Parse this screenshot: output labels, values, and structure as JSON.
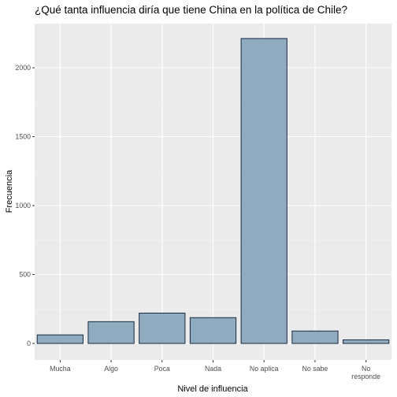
{
  "chart_data": {
    "type": "bar",
    "title": "¿Qué tanta influencia diría que tiene China en la política de Chile?",
    "xlabel": "Nivel de influencia",
    "ylabel": "Frecuencia",
    "categories": [
      [
        "Mucha"
      ],
      [
        "Algo"
      ],
      [
        "Poca"
      ],
      [
        "Nada"
      ],
      [
        "No aplica"
      ],
      [
        "No sabe"
      ],
      [
        "No",
        "responde"
      ]
    ],
    "values": [
      62,
      158,
      220,
      187,
      2212,
      90,
      26
    ],
    "ylim": [
      -120,
      2320
    ],
    "yticks": [
      0,
      500,
      1000,
      1500,
      2000
    ],
    "grid": true,
    "colors": {
      "panel": "#ebebeb",
      "grid_major": "#ffffff",
      "grid_minor": "#f5f5f5",
      "bar_fill": "#8eabc0",
      "bar_stroke": "#1a2a40",
      "tick": "#333333"
    }
  }
}
